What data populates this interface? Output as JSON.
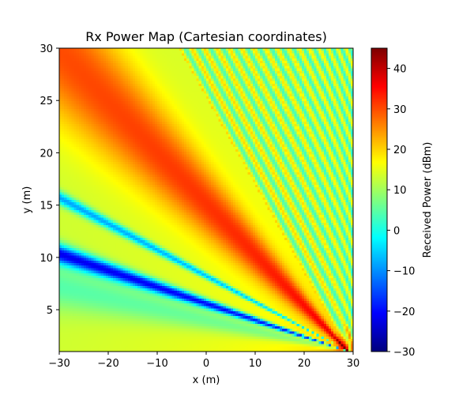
{
  "chart_data": {
    "type": "heatmap",
    "title": "Rx Power Map (Cartesian coordinates)",
    "xlabel": "x (m)",
    "ylabel": "y (m)",
    "xlim": [
      -30,
      30
    ],
    "ylim": [
      1,
      30
    ],
    "x_ticks": [
      -30,
      -20,
      -10,
      0,
      10,
      20,
      30
    ],
    "y_ticks": [
      5,
      10,
      15,
      20,
      25,
      30
    ],
    "colormap": "jet",
    "colorbar": {
      "label": "Received Power (dBm)",
      "range": [
        -30,
        45
      ],
      "ticks": [
        -30,
        -20,
        -10,
        0,
        10,
        20,
        30,
        40
      ]
    },
    "transmitter_position": [
      29,
      1
    ],
    "grid": false,
    "description_of_field": {
      "main_beam_angle_deg": 154,
      "main_beam_peak_dBm": 45,
      "nulls_angle_deg": [
        166,
        171
      ],
      "far_field_level_dBm": [
        5,
        25
      ]
    }
  }
}
